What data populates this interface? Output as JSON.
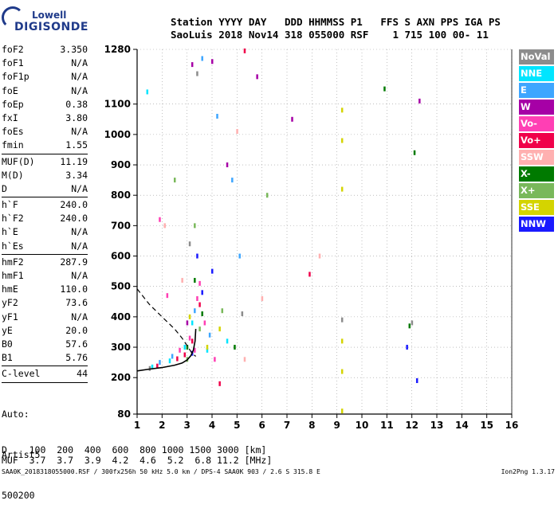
{
  "logo": {
    "line1": "Lowell",
    "line2": "DIGISONDE"
  },
  "header": {
    "row1": "Station YYYY DAY   DDD HHMMSS P1   FFS S AXN PPS IGA PS",
    "row2": "SaoLuis 2018 Nov14 318 055000 RSF    1 715 100 00- 11"
  },
  "params_group1": [
    {
      "label": "foF2",
      "value": "3.350"
    },
    {
      "label": "foF1",
      "value": "N/A"
    },
    {
      "label": "foF1p",
      "value": "N/A"
    },
    {
      "label": "foE",
      "value": "N/A"
    },
    {
      "label": "foEp",
      "value": "0.38"
    },
    {
      "label": "fxI",
      "value": "3.80"
    },
    {
      "label": "foEs",
      "value": "N/A"
    },
    {
      "label": "fmin",
      "value": "1.55"
    }
  ],
  "params_group2": [
    {
      "label": "MUF(D)",
      "value": "11.19"
    },
    {
      "label": "M(D)",
      "value": "3.34"
    },
    {
      "label": "D",
      "value": "N/A"
    }
  ],
  "params_group3": [
    {
      "label": "h`F",
      "value": "240.0"
    },
    {
      "label": "h`F2",
      "value": "240.0"
    },
    {
      "label": "h`E",
      "value": "N/A"
    },
    {
      "label": "h`Es",
      "value": "N/A"
    }
  ],
  "params_group4": [
    {
      "label": "hmF2",
      "value": "287.9"
    },
    {
      "label": "hmF1",
      "value": "N/A"
    },
    {
      "label": "hmE",
      "value": "110.0"
    },
    {
      "label": "yF2",
      "value": "73.6"
    },
    {
      "label": "yF1",
      "value": "N/A"
    },
    {
      "label": "yE",
      "value": "20.0"
    },
    {
      "label": "B0",
      "value": "57.6"
    },
    {
      "label": "B1",
      "value": "5.76"
    }
  ],
  "params_group5": [
    {
      "label": "C-level",
      "value": "44"
    }
  ],
  "auto": {
    "line1": "Auto:",
    "line2": "Artist5",
    "line3": "500200"
  },
  "legend": [
    {
      "name": "NoVal",
      "color": "#8c8c8c"
    },
    {
      "name": "NNE",
      "color": "#00e5ff"
    },
    {
      "name": "E",
      "color": "#3ea6ff"
    },
    {
      "name": "W",
      "color": "#a600a6"
    },
    {
      "name": "Vo-",
      "color": "#ff3fb4"
    },
    {
      "name": "Vo+",
      "color": "#f0004a"
    },
    {
      "name": "SSW",
      "color": "#ffb0b0"
    },
    {
      "name": "X-",
      "color": "#007a00"
    },
    {
      "name": "X+",
      "color": "#79b85a"
    },
    {
      "name": "SSE",
      "color": "#d4d400"
    },
    {
      "name": "NNW",
      "color": "#1a1aff"
    }
  ],
  "muf_table": {
    "row1": "D    100  200  400  600  800 1000 1500 3000 [km]",
    "row2": "MUF  3.7  3.7  3.9  4.2  4.6  5.2  6.8 11.2 [MHz]"
  },
  "footer": {
    "left": "SAA0K_2018318055000.RSF / 300fx256h 50 kHz 5.0 km / DPS-4 SAA0K 903 / 2.6 S 315.8 E",
    "right": "Ion2Png 1.3.17"
  },
  "chart_data": {
    "type": "scatter",
    "xlim": [
      1,
      16
    ],
    "ylim": [
      80,
      1280
    ],
    "x_ticks": [
      1,
      2,
      3,
      4,
      5,
      6,
      7,
      8,
      9,
      10,
      11,
      12,
      13,
      14,
      15,
      16
    ],
    "y_ticks": [
      80,
      200,
      300,
      400,
      500,
      600,
      700,
      800,
      900,
      1000,
      1100,
      1280
    ],
    "grid": "dotted",
    "series": [
      {
        "name": "NoVal",
        "color": "#8c8c8c",
        "points": [
          [
            1.5,
            230
          ],
          [
            3.1,
            640
          ],
          [
            3.4,
            1200
          ],
          [
            5.2,
            410
          ],
          [
            9.2,
            390
          ],
          [
            12.0,
            380
          ]
        ]
      },
      {
        "name": "NNE",
        "color": "#00e5ff",
        "points": [
          [
            1.4,
            1140
          ],
          [
            1.6,
            235
          ],
          [
            2.3,
            255
          ],
          [
            2.9,
            300
          ],
          [
            3.2,
            380
          ],
          [
            3.8,
            290
          ],
          [
            4.6,
            320
          ]
        ]
      },
      {
        "name": "E",
        "color": "#3ea6ff",
        "points": [
          [
            1.9,
            250
          ],
          [
            2.4,
            270
          ],
          [
            3.3,
            420
          ],
          [
            3.6,
            1250
          ],
          [
            4.2,
            1060
          ],
          [
            4.8,
            850
          ],
          [
            5.1,
            600
          ],
          [
            3.9,
            340
          ]
        ]
      },
      {
        "name": "W",
        "color": "#a600a6",
        "points": [
          [
            3.2,
            1230
          ],
          [
            4.0,
            1240
          ],
          [
            4.6,
            900
          ],
          [
            5.8,
            1190
          ],
          [
            7.2,
            1050
          ],
          [
            12.3,
            1110
          ],
          [
            3.0,
            380
          ]
        ]
      },
      {
        "name": "Vo-",
        "color": "#ff3fb4",
        "points": [
          [
            1.9,
            720
          ],
          [
            2.2,
            470
          ],
          [
            2.7,
            290
          ],
          [
            3.1,
            330
          ],
          [
            3.4,
            460
          ],
          [
            3.5,
            510
          ],
          [
            3.7,
            380
          ],
          [
            4.1,
            260
          ],
          [
            3.3,
            290
          ]
        ]
      },
      {
        "name": "Vo+",
        "color": "#f0004a",
        "points": [
          [
            1.8,
            238
          ],
          [
            2.6,
            262
          ],
          [
            3.2,
            320
          ],
          [
            3.5,
            440
          ],
          [
            5.3,
            1275
          ],
          [
            7.9,
            540
          ],
          [
            4.3,
            180
          ],
          [
            2.9,
            275
          ]
        ]
      },
      {
        "name": "SSW",
        "color": "#ffb0b0",
        "points": [
          [
            2.1,
            700
          ],
          [
            2.8,
            520
          ],
          [
            5.0,
            1010
          ],
          [
            6.0,
            460
          ],
          [
            8.3,
            600
          ],
          [
            5.3,
            260
          ]
        ]
      },
      {
        "name": "X-",
        "color": "#007a00",
        "points": [
          [
            3.0,
            300
          ],
          [
            3.3,
            520
          ],
          [
            4.9,
            300
          ],
          [
            10.9,
            1150
          ],
          [
            11.9,
            370
          ],
          [
            12.1,
            940
          ],
          [
            3.6,
            410
          ]
        ]
      },
      {
        "name": "X+",
        "color": "#79b85a",
        "points": [
          [
            2.5,
            850
          ],
          [
            3.3,
            700
          ],
          [
            3.5,
            360
          ],
          [
            4.4,
            420
          ],
          [
            3.0,
            260
          ],
          [
            6.2,
            800
          ]
        ]
      },
      {
        "name": "SSE",
        "color": "#d4d400",
        "points": [
          [
            3.1,
            400
          ],
          [
            4.3,
            360
          ],
          [
            9.2,
            1080
          ],
          [
            9.2,
            980
          ],
          [
            9.2,
            820
          ],
          [
            9.2,
            320
          ],
          [
            9.2,
            220
          ],
          [
            9.2,
            90
          ],
          [
            3.8,
            300
          ]
        ]
      },
      {
        "name": "NNW",
        "color": "#1a1aff",
        "points": [
          [
            3.4,
            600
          ],
          [
            3.6,
            480
          ],
          [
            4.0,
            550
          ],
          [
            3.2,
            280
          ],
          [
            11.8,
            300
          ],
          [
            12.2,
            190
          ]
        ]
      }
    ],
    "trace_curve": [
      [
        1.0,
        222
      ],
      [
        1.5,
        228
      ],
      [
        2.0,
        233
      ],
      [
        2.5,
        241
      ],
      [
        2.8,
        248
      ],
      [
        3.0,
        258
      ],
      [
        3.15,
        272
      ],
      [
        3.25,
        290
      ],
      [
        3.32,
        320
      ],
      [
        3.35,
        360
      ]
    ],
    "profile_curve": [
      [
        1.0,
        492
      ],
      [
        1.5,
        440
      ],
      [
        2.0,
        400
      ],
      [
        2.5,
        360
      ],
      [
        2.8,
        330
      ],
      [
        3.0,
        305
      ],
      [
        3.2,
        280
      ],
      [
        3.35,
        270
      ]
    ]
  }
}
